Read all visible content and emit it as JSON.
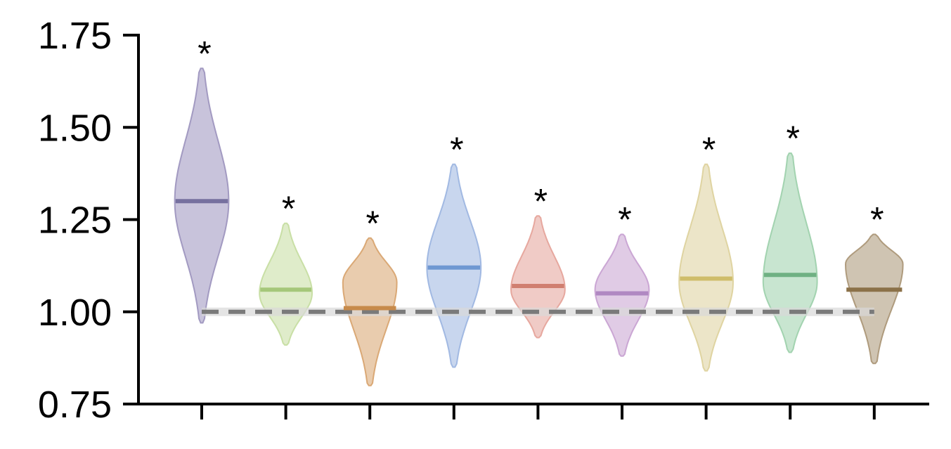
{
  "chart_data": {
    "type": "violin",
    "title": "",
    "xlabel": "",
    "ylabel": "",
    "ylim": [
      0.75,
      1.75
    ],
    "yticks": [
      "0.75",
      "1.00",
      "1.25",
      "1.50",
      "1.75"
    ],
    "xtick_labels": [
      "",
      "",
      "",
      "",
      "",
      "",
      "",
      "",
      ""
    ],
    "reference_line": {
      "y": 1.0,
      "style": "dashed",
      "color": "#7a7a7a"
    },
    "significance_marker": "*",
    "violins": [
      {
        "color": "#9b92bd",
        "median_color": "#76709f",
        "min": 0.97,
        "max": 1.66,
        "median": 1.3,
        "peak": 1.3,
        "width": 0.8,
        "marked": true
      },
      {
        "color": "#c4dd9f",
        "median_color": "#a5c77a",
        "min": 0.91,
        "max": 1.24,
        "median": 1.06,
        "peak": 1.05,
        "width": 0.78,
        "marked": true
      },
      {
        "color": "#d7a26c",
        "median_color": "#c78a4a",
        "min": 0.8,
        "max": 1.2,
        "median": 1.01,
        "peak": 1.08,
        "width": 0.8,
        "marked": true
      },
      {
        "color": "#9ab4e0",
        "median_color": "#6f98d2",
        "min": 0.85,
        "max": 1.4,
        "median": 1.12,
        "peak": 1.12,
        "width": 0.8,
        "marked": true
      },
      {
        "color": "#e4a197",
        "median_color": "#d07f70",
        "min": 0.93,
        "max": 1.26,
        "median": 1.07,
        "peak": 1.06,
        "width": 0.8,
        "marked": true
      },
      {
        "color": "#c7a0d0",
        "median_color": "#b088c2",
        "min": 0.88,
        "max": 1.21,
        "median": 1.05,
        "peak": 1.06,
        "width": 0.8,
        "marked": true
      },
      {
        "color": "#ddd09a",
        "median_color": "#cfbd6a",
        "min": 0.84,
        "max": 1.4,
        "median": 1.09,
        "peak": 1.08,
        "width": 0.8,
        "marked": true
      },
      {
        "color": "#9bcfaa",
        "median_color": "#6fb183",
        "min": 0.89,
        "max": 1.43,
        "median": 1.1,
        "peak": 1.08,
        "width": 0.8,
        "marked": true
      },
      {
        "color": "#a89373",
        "median_color": "#8b7148",
        "min": 0.86,
        "max": 1.21,
        "median": 1.06,
        "peak": 1.13,
        "width": 0.85,
        "marked": true
      }
    ]
  }
}
